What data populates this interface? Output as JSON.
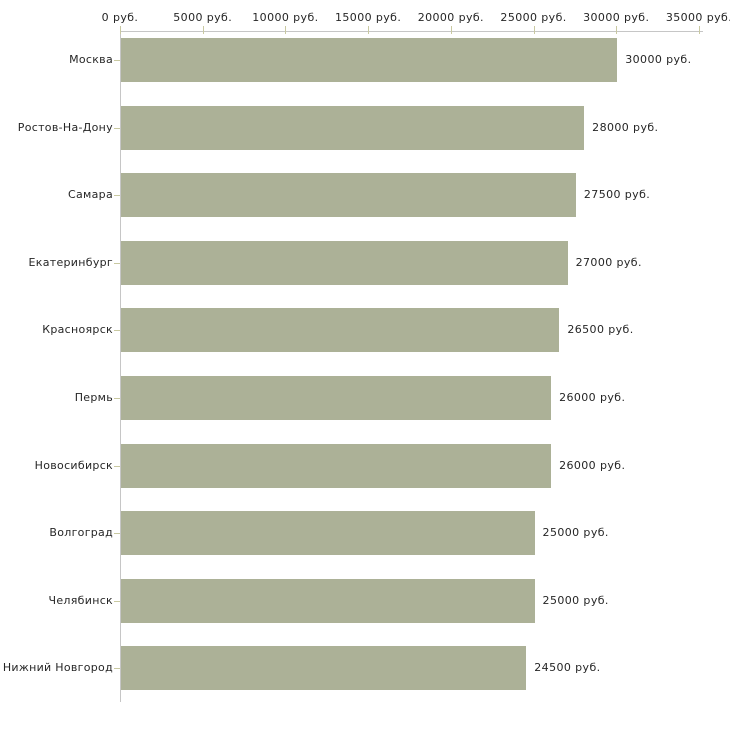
{
  "chart": {
    "bg_color": "#ffffff",
    "bar_color": "#acb197",
    "axis_line_color": "#c6c6c6",
    "tick_color": "#c9c9a1",
    "text_color": "#262626"
  },
  "chart_data": {
    "type": "bar",
    "orientation": "horizontal",
    "title": "",
    "xlabel": "",
    "ylabel": "",
    "categories": [
      "Москва",
      "Ростов-На-Дону",
      "Самара",
      "Екатеринбург",
      "Красноярск",
      "Пермь",
      "Новосибирск",
      "Волгоград",
      "Челябинск",
      "Нижний Новгород"
    ],
    "values": [
      30000,
      28000,
      27500,
      27000,
      26500,
      26000,
      26000,
      25000,
      25000,
      24500
    ],
    "value_labels": [
      "30000 руб.",
      "28000 руб.",
      "27500 руб.",
      "27000 руб.",
      "26500 руб.",
      "26000 руб.",
      "26000 руб.",
      "25000 руб.",
      "25000 руб.",
      "24500 руб."
    ],
    "x_tick_values": [
      0,
      5000,
      10000,
      15000,
      20000,
      25000,
      30000,
      35000
    ],
    "x_tick_labels": [
      "0 руб.",
      "5000 руб.",
      "10000 руб.",
      "15000 руб.",
      "20000 руб.",
      "25000 руб.",
      "30000 руб.",
      "35000 руб."
    ],
    "xlim": [
      0,
      35000
    ],
    "grid": false,
    "legend": false,
    "axis_position": "top"
  }
}
